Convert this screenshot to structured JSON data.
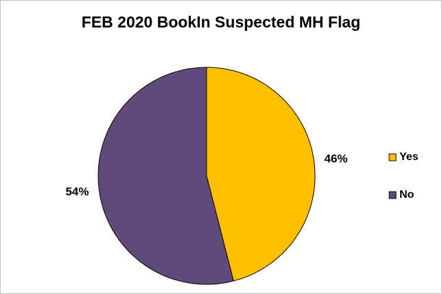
{
  "chart_data": {
    "type": "pie",
    "title": "FEB 2020 BookIn Suspected MH Flag",
    "categories": [
      "Yes",
      "No"
    ],
    "values": [
      46,
      54
    ],
    "value_labels": [
      "46%",
      "54%"
    ],
    "colors": [
      "#ffc000",
      "#604a7b"
    ],
    "legend": "right"
  }
}
